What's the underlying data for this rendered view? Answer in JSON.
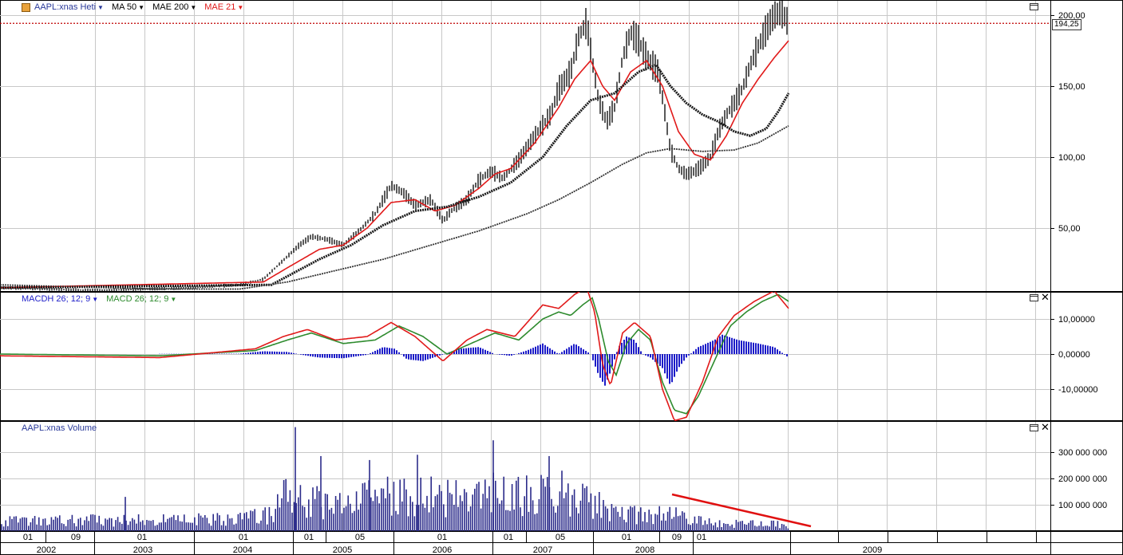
{
  "price_panel": {
    "legend": {
      "symbol": "AAPL:xnas Heti",
      "ma50": "MA 50",
      "mae200": "MAE 200",
      "mae21": "MAE 21"
    },
    "y_labels": [
      "200,00",
      "150,00",
      "100,00",
      "50,00"
    ],
    "y_values": [
      200,
      150,
      100,
      50
    ],
    "current_price": "194,25",
    "current_value": 194.25
  },
  "macd_panel": {
    "legend": {
      "macdh": "MACDH 26; 12; 9",
      "macd": "MACD 26; 12; 9"
    },
    "y_labels": [
      "10,00000",
      "0,00000",
      "-10,00000"
    ],
    "y_values": [
      10,
      0,
      -10
    ]
  },
  "volume_panel": {
    "legend": {
      "title": "AAPL:xnas Volume"
    },
    "y_labels": [
      "300 000 000",
      "200 000 000",
      "100 000 000"
    ],
    "y_values": [
      300000000,
      200000000,
      100000000
    ]
  },
  "time_axis": {
    "months": [
      {
        "label": "01",
        "w": 35
      },
      {
        "label": "09",
        "w": 95
      },
      {
        "label": "01",
        "w": 178
      },
      {
        "label": "01",
        "w": 305
      },
      {
        "label": "01",
        "w": 387
      },
      {
        "label": "05",
        "w": 451
      },
      {
        "label": "01",
        "w": 554
      },
      {
        "label": "01",
        "w": 637
      },
      {
        "label": "05",
        "w": 702
      },
      {
        "label": "01",
        "w": 785
      },
      {
        "label": "09",
        "w": 848
      },
      {
        "label": "01",
        "w": 879
      }
    ],
    "years": [
      {
        "label": "2002",
        "w": 58
      },
      {
        "label": "2003",
        "w": 179
      },
      {
        "label": "2004",
        "w": 304
      },
      {
        "label": "2005",
        "w": 429
      },
      {
        "label": "2006",
        "w": 554
      },
      {
        "label": "2007",
        "w": 680
      },
      {
        "label": "2008",
        "w": 808
      },
      {
        "label": "2009",
        "w": 1093
      }
    ]
  },
  "colors": {
    "price": "#000000",
    "mae21": "#e11a1a",
    "ma50": "#1a1a1a",
    "mae200": "#333333",
    "macdh": "#1c1cc8",
    "macd_line": "#2e8b2e",
    "signal_line": "#e11a1a",
    "volume": "#2b2b8a",
    "trendline": "#e01010",
    "grid": "#c8c8c8",
    "price_ref": "#c00000"
  },
  "icons": [
    "chart-icon",
    "dropdown-arrow-icon",
    "maximize-icon",
    "close-icon"
  ]
}
